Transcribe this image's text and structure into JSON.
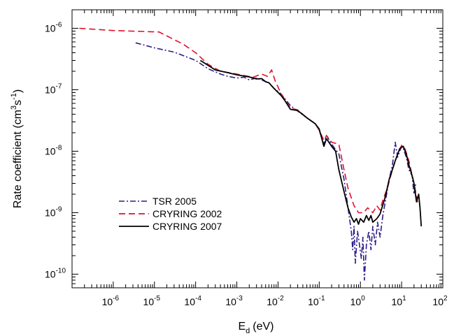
{
  "chart_data": {
    "type": "line",
    "xlabel": "E",
    "xlabel_sub": "d",
    "xlabel_unit": "(eV)",
    "ylabel": "Rate coefficient (cm",
    "ylabel_sup1": "3",
    "ylabel_mid": "s",
    "ylabel_sup2": "-1",
    "ylabel_end": ")",
    "x_scale": "log",
    "y_scale": "log",
    "xlim": [
      1e-07,
      100
    ],
    "ylim": [
      6e-11,
      2e-06
    ],
    "x_ticks": [
      {
        "base": "10",
        "exp": "-6",
        "value": 1e-06
      },
      {
        "base": "10",
        "exp": "-5",
        "value": 1e-05
      },
      {
        "base": "10",
        "exp": "-4",
        "value": 0.0001
      },
      {
        "base": "10",
        "exp": "-3",
        "value": 0.001
      },
      {
        "base": "10",
        "exp": "-2",
        "value": 0.01
      },
      {
        "base": "10",
        "exp": "-1",
        "value": 0.1
      },
      {
        "base": "10",
        "exp": "0",
        "value": 1
      },
      {
        "base": "10",
        "exp": "1",
        "value": 10
      },
      {
        "base": "10",
        "exp": "2",
        "value": 100
      }
    ],
    "y_ticks": [
      {
        "base": "10",
        "exp": "-6",
        "value": 1e-06
      },
      {
        "base": "10",
        "exp": "-7",
        "value": 1e-07
      },
      {
        "base": "10",
        "exp": "-8",
        "value": 1e-08
      },
      {
        "base": "10",
        "exp": "-9",
        "value": 1e-09
      },
      {
        "base": "10",
        "exp": "-10",
        "value": 1e-10
      }
    ],
    "legend_position": "center-left",
    "grid": false,
    "series": [
      {
        "name": "TSR 2005",
        "color": "#2e1a8a",
        "dash": "dash-dot",
        "points": [
          [
            3.5e-06,
            5.8e-07
          ],
          [
            1e-05,
            4.8e-07
          ],
          [
            3e-05,
            4.1e-07
          ],
          [
            0.0001,
            3e-07
          ],
          [
            0.0002,
            2.2e-07
          ],
          [
            0.0004,
            1.8e-07
          ],
          [
            0.0006,
            1.65e-07
          ],
          [
            0.001,
            1.55e-07
          ],
          [
            0.0015,
            1.6e-07
          ],
          [
            0.002,
            1.45e-07
          ],
          [
            0.003,
            1.55e-07
          ],
          [
            0.0045,
            1.4e-07
          ],
          [
            0.006,
            1.3e-07
          ],
          [
            0.008,
            1.05e-07
          ],
          [
            0.012,
            8.5e-08
          ],
          [
            0.02,
            5.5e-08
          ],
          [
            0.03,
            4.5e-08
          ],
          [
            0.05,
            3.5e-08
          ],
          [
            0.08,
            2.8e-08
          ],
          [
            0.1,
            2.2e-08
          ],
          [
            0.13,
            1.3e-08
          ],
          [
            0.15,
            1.8e-08
          ],
          [
            0.2,
            1.3e-08
          ],
          [
            0.3,
            9e-09
          ],
          [
            0.4,
            3.5e-09
          ],
          [
            0.5,
            1.2e-09
          ],
          [
            0.6,
            5e-10
          ],
          [
            0.65,
            2.5e-10
          ],
          [
            0.7,
            6e-10
          ],
          [
            0.75,
            1.5e-10
          ],
          [
            0.85,
            5e-10
          ],
          [
            0.95,
            3e-10
          ],
          [
            1.05,
            1.8e-10
          ],
          [
            1.15,
            4e-10
          ],
          [
            1.25,
            8e-11
          ],
          [
            1.4,
            3e-10
          ],
          [
            1.6,
            5e-10
          ],
          [
            1.8,
            2.5e-10
          ],
          [
            2.0,
            6e-10
          ],
          [
            2.3,
            3e-10
          ],
          [
            2.6,
            7e-10
          ],
          [
            3.0,
            4e-10
          ],
          [
            3.5,
            9e-10
          ],
          [
            4,
            1.5e-09
          ],
          [
            5,
            3.5e-09
          ],
          [
            6,
            6e-09
          ],
          [
            7,
            1.4e-08
          ],
          [
            8,
            8e-09
          ],
          [
            9,
            1e-08
          ],
          [
            10,
            1.2e-08
          ],
          [
            11,
            1.1e-08
          ],
          [
            13,
            8e-09
          ],
          [
            15,
            5e-09
          ],
          [
            18,
            4e-09
          ],
          [
            20,
            2e-09
          ],
          [
            22,
            3e-09
          ]
        ]
      },
      {
        "name": "CRYRING 2002",
        "color": "#e0102a",
        "dash": "dashed",
        "points": [
          [
            1.5e-07,
            1e-06
          ],
          [
            1e-06,
            9.2e-07
          ],
          [
            1.3e-05,
            8.7e-07
          ],
          [
            5e-05,
            5.5e-07
          ],
          [
            0.0001,
            4e-07
          ],
          [
            0.0002,
            2.6e-07
          ],
          [
            0.0004,
            2e-07
          ],
          [
            0.0008,
            1.85e-07
          ],
          [
            0.0015,
            1.7e-07
          ],
          [
            0.0025,
            1.6e-07
          ],
          [
            0.004,
            1.8e-07
          ],
          [
            0.0055,
            1.65e-07
          ],
          [
            0.007,
            2.1e-07
          ],
          [
            0.0085,
            1.4e-07
          ],
          [
            0.012,
            8.5e-08
          ],
          [
            0.02,
            5e-08
          ],
          [
            0.03,
            4.7e-08
          ],
          [
            0.05,
            3.5e-08
          ],
          [
            0.08,
            2.8e-08
          ],
          [
            0.1,
            2.2e-08
          ],
          [
            0.13,
            1.5e-08
          ],
          [
            0.15,
            1.8e-08
          ],
          [
            0.2,
            1.4e-08
          ],
          [
            0.3,
            1.3e-08
          ],
          [
            0.4,
            5e-09
          ],
          [
            0.5,
            2.5e-09
          ],
          [
            0.7,
            1.3e-09
          ],
          [
            0.9,
            1e-09
          ],
          [
            1.2,
            1e-09
          ],
          [
            1.5,
            1.2e-09
          ],
          [
            2.0,
            1e-09
          ],
          [
            2.5,
            1.3e-09
          ],
          [
            3.0,
            1.1e-09
          ],
          [
            3.5,
            1.6e-09
          ],
          [
            4.5,
            2.5e-09
          ],
          [
            6,
            5e-09
          ],
          [
            8,
            9e-09
          ],
          [
            10,
            1.25e-08
          ],
          [
            12,
            1.1e-08
          ],
          [
            15,
            7e-09
          ],
          [
            20,
            3e-09
          ],
          [
            25,
            1.4e-09
          ]
        ]
      },
      {
        "name": "CRYRING 2007",
        "color": "#000000",
        "dash": "solid",
        "points": [
          [
            0.00013,
            3e-07
          ],
          [
            0.0002,
            2.5e-07
          ],
          [
            0.0003,
            2.1e-07
          ],
          [
            0.0006,
            1.9e-07
          ],
          [
            0.001,
            1.75e-07
          ],
          [
            0.002,
            1.62e-07
          ],
          [
            0.003,
            1.5e-07
          ],
          [
            0.004,
            1.52e-07
          ],
          [
            0.005,
            1.35e-07
          ],
          [
            0.006,
            1.3e-07
          ],
          [
            0.008,
            1.05e-07
          ],
          [
            0.012,
            8e-08
          ],
          [
            0.015,
            6.5e-08
          ],
          [
            0.02,
            4.8e-08
          ],
          [
            0.03,
            4.6e-08
          ],
          [
            0.05,
            3.5e-08
          ],
          [
            0.08,
            2.8e-08
          ],
          [
            0.1,
            2.3e-08
          ],
          [
            0.13,
            1.2e-08
          ],
          [
            0.15,
            1.6e-08
          ],
          [
            0.2,
            1.2e-08
          ],
          [
            0.25,
            1e-08
          ],
          [
            0.3,
            5e-09
          ],
          [
            0.4,
            2.2e-09
          ],
          [
            0.5,
            1.2e-09
          ],
          [
            0.6,
            8.5e-10
          ],
          [
            0.7,
            7e-10
          ],
          [
            0.8,
            8e-10
          ],
          [
            0.9,
            6.5e-10
          ],
          [
            1.0,
            8e-10
          ],
          [
            1.2,
            7e-10
          ],
          [
            1.4,
            9e-10
          ],
          [
            1.6,
            7.5e-10
          ],
          [
            1.8,
            9e-10
          ],
          [
            2.0,
            7e-10
          ],
          [
            2.5,
            8e-10
          ],
          [
            3.0,
            9.5e-10
          ],
          [
            4,
            1.8e-09
          ],
          [
            5,
            3.5e-09
          ],
          [
            7,
            7e-09
          ],
          [
            9,
            1.1e-08
          ],
          [
            11,
            1.2e-08
          ],
          [
            13,
            9e-09
          ],
          [
            15,
            6e-09
          ],
          [
            18,
            4e-09
          ],
          [
            20,
            3e-09
          ],
          [
            23,
            1.5e-09
          ],
          [
            26,
            2e-09
          ],
          [
            28,
            1.2e-09
          ],
          [
            30,
            6e-10
          ]
        ]
      }
    ]
  }
}
